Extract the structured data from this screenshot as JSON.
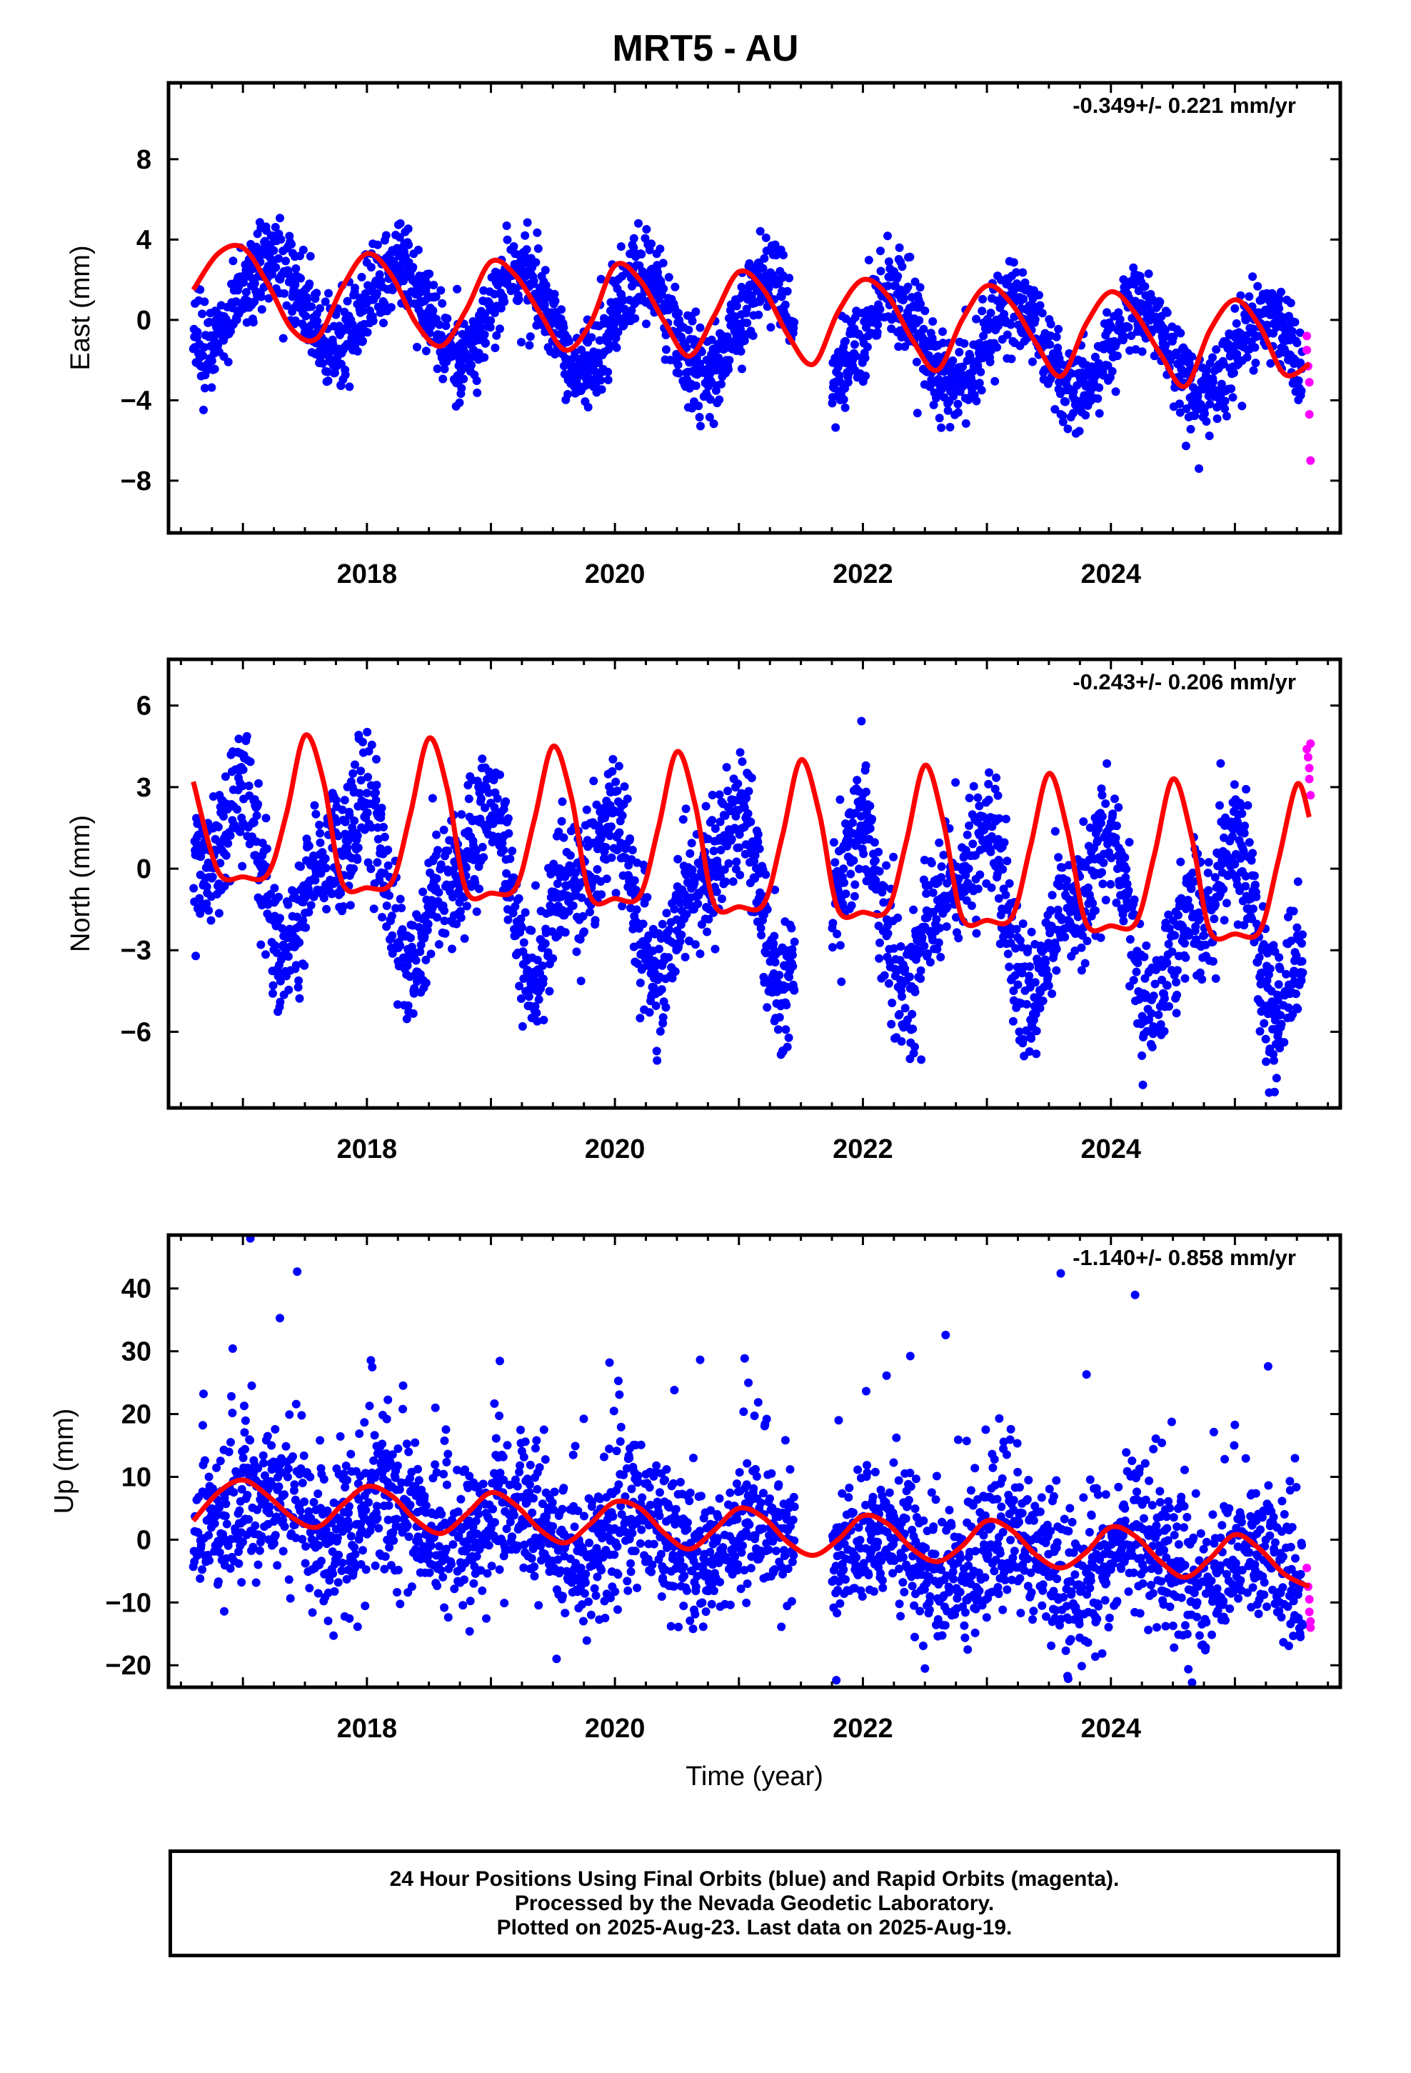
{
  "title": "MRT5 - AU",
  "colors": {
    "final": "#0000ff",
    "rapid": "#ff00ff",
    "fit": "#ff0000",
    "frame": "#000000"
  },
  "footer": {
    "line1": "24 Hour Positions Using Final Orbits (blue) and Rapid Orbits (magenta).",
    "line2": "Processed by the Nevada Geodetic Laboratory.",
    "line3": "Plotted on 2025-Aug-23. Last data on 2025-Aug-19."
  },
  "chart_data": [
    {
      "type": "scatter",
      "panel": "east",
      "ylabel": "East (mm)",
      "xlabel": "",
      "rate_label": "-0.349+/- 0.221 mm/yr",
      "xlim": [
        2016.4,
        2025.85
      ],
      "ylim": [
        -10.6,
        11.8
      ],
      "xticks": [
        2018,
        2020,
        2022,
        2024
      ],
      "yticks": [
        8,
        4,
        0,
        -4,
        -8
      ],
      "ytick_labels": [
        "8",
        "4",
        "0",
        "−4",
        "−8"
      ],
      "series": [
        {
          "kind": "final_points",
          "description_from_legend": "final orbits (blue)",
          "x_start": 2016.6,
          "x_end": 2025.55,
          "trend_at_start": 1.1,
          "rate": -0.349,
          "annual_amplitude": 2.3,
          "annual_phase": 0.1,
          "semiannual_amplitude": 0.0,
          "semiannual_phase": 0.0,
          "scatter_sd": 1.1
        },
        {
          "kind": "rapid_points",
          "description_from_legend": "rapid orbits (magenta)",
          "x": [
            2025.58,
            2025.58,
            2025.59,
            2025.6,
            2025.6,
            2025.61
          ],
          "y": [
            -0.8,
            -1.5,
            -2.3,
            -3.1,
            -4.7,
            -7.0
          ]
        },
        {
          "kind": "fit_line",
          "x": [
            2016.6,
            2016.8,
            2017.0,
            2017.2,
            2017.4,
            2017.6,
            2017.8,
            2018.0,
            2018.2,
            2018.4,
            2018.6,
            2018.8,
            2019.0,
            2019.2,
            2019.4,
            2019.6,
            2019.8,
            2020.0,
            2020.2,
            2020.4,
            2020.6,
            2020.8,
            2021.0,
            2021.2,
            2021.4,
            2021.6,
            2021.8,
            2022.0,
            2022.2,
            2022.4,
            2022.6,
            2022.8,
            2023.0,
            2023.2,
            2023.4,
            2023.6,
            2023.8,
            2024.0,
            2024.2,
            2024.4,
            2024.6,
            2024.8,
            2025.0,
            2025.2,
            2025.4,
            2025.6
          ],
          "y": [
            1.5,
            3.3,
            3.6,
            1.8,
            -0.5,
            -0.9,
            1.6,
            3.3,
            2.2,
            -0.2,
            -1.3,
            0.5,
            2.9,
            2.2,
            0.3,
            -1.5,
            -0.2,
            2.7,
            2.0,
            -0.1,
            -1.8,
            0.2,
            2.4,
            1.5,
            -0.8,
            -2.2,
            0.4,
            2.0,
            1.2,
            -1.0,
            -2.5,
            0.0,
            1.7,
            0.8,
            -1.2,
            -2.8,
            -0.2,
            1.4,
            0.3,
            -1.7,
            -3.3,
            -0.5,
            1.0,
            -0.3,
            -2.7,
            -2.2
          ]
        }
      ]
    },
    {
      "type": "scatter",
      "panel": "north",
      "ylabel": "North (mm)",
      "xlabel": "",
      "rate_label": "-0.243+/- 0.206 mm/yr",
      "xlim": [
        2016.4,
        2025.85
      ],
      "ylim": [
        -8.8,
        7.7
      ],
      "xticks": [
        2018,
        2020,
        2022,
        2024
      ],
      "yticks": [
        6,
        3,
        0,
        -3,
        -6
      ],
      "ytick_labels": [
        "6",
        "3",
        "0",
        "−3",
        "−6"
      ],
      "series": [
        {
          "kind": "final_points",
          "description_from_legend": "final orbits (blue)",
          "x_start": 2016.6,
          "x_end": 2025.55,
          "trend_at_start": 0.0,
          "rate": -0.243,
          "annual_amplitude": 2.5,
          "annual_phase": 2.2,
          "semiannual_amplitude": 1.2,
          "semiannual_phase": 1.0,
          "scatter_sd": 1.2
        },
        {
          "kind": "rapid_points",
          "description_from_legend": "rapid orbits (magenta)",
          "x": [
            2025.58,
            2025.59,
            2025.6,
            2025.6,
            2025.61,
            2025.61
          ],
          "y": [
            4.4,
            4.1,
            3.7,
            3.3,
            2.7,
            4.6
          ]
        },
        {
          "kind": "fit_line",
          "x": [
            2016.6,
            2016.8,
            2017.0,
            2017.2,
            2017.35,
            2017.5,
            2017.65,
            2017.8,
            2018.0,
            2018.2,
            2018.35,
            2018.5,
            2018.65,
            2018.8,
            2019.0,
            2019.2,
            2019.35,
            2019.5,
            2019.65,
            2019.8,
            2020.0,
            2020.2,
            2020.35,
            2020.5,
            2020.65,
            2020.8,
            2021.0,
            2021.2,
            2021.35,
            2021.5,
            2021.65,
            2021.8,
            2022.0,
            2022.2,
            2022.35,
            2022.5,
            2022.65,
            2022.8,
            2023.0,
            2023.2,
            2023.35,
            2023.5,
            2023.65,
            2023.8,
            2024.0,
            2024.2,
            2024.35,
            2024.5,
            2024.65,
            2024.8,
            2025.0,
            2025.2,
            2025.35,
            2025.5,
            2025.6
          ],
          "y": [
            3.2,
            -0.1,
            -0.3,
            -0.2,
            2.0,
            4.9,
            3.2,
            -0.5,
            -0.7,
            -0.5,
            2.0,
            4.8,
            2.9,
            -0.8,
            -0.9,
            -0.7,
            1.8,
            4.5,
            2.6,
            -1.0,
            -1.1,
            -1.0,
            1.5,
            4.3,
            2.3,
            -1.3,
            -1.4,
            -1.3,
            1.2,
            4.0,
            2.0,
            -1.5,
            -1.6,
            -1.5,
            1.0,
            3.8,
            1.7,
            -1.8,
            -1.9,
            -1.8,
            0.8,
            3.5,
            1.4,
            -2.0,
            -2.1,
            -2.0,
            0.5,
            3.3,
            1.2,
            -2.3,
            -2.4,
            -2.3,
            0.3,
            3.1,
            1.9
          ]
        }
      ]
    },
    {
      "type": "scatter",
      "panel": "up",
      "ylabel": "Up (mm)",
      "xlabel": "Time (year)",
      "rate_label": "-1.140+/- 0.858 mm/yr",
      "xlim": [
        2016.4,
        2025.85
      ],
      "ylim": [
        -23.5,
        48.5
      ],
      "xticks": [
        2018,
        2020,
        2022,
        2024
      ],
      "yticks": [
        40,
        30,
        20,
        10,
        0,
        -10,
        -20
      ],
      "ytick_labels": [
        "40",
        "30",
        "20",
        "10",
        "0",
        "−10",
        "−20"
      ],
      "series": [
        {
          "kind": "final_points",
          "description_from_legend": "final orbits (blue)",
          "x_start": 2016.6,
          "x_end": 2025.55,
          "trend_at_start": 4.5,
          "rate": -1.14,
          "annual_amplitude": 3.8,
          "annual_phase": 0.4,
          "semiannual_amplitude": 0.0,
          "semiannual_phase": 0.0,
          "scatter_sd": 5.5
        },
        {
          "kind": "rapid_points",
          "description_from_legend": "rapid orbits (magenta)",
          "x": [
            2025.58,
            2025.59,
            2025.6,
            2025.6,
            2025.61,
            2025.61
          ],
          "y": [
            -4.5,
            -7.5,
            -9.5,
            -11.5,
            -13.0,
            -14.0
          ]
        },
        {
          "kind": "fit_line",
          "x": [
            2016.6,
            2016.8,
            2017.0,
            2017.2,
            2017.4,
            2017.6,
            2017.8,
            2018.0,
            2018.2,
            2018.4,
            2018.6,
            2018.8,
            2019.0,
            2019.2,
            2019.4,
            2019.6,
            2019.8,
            2020.0,
            2020.2,
            2020.4,
            2020.6,
            2020.8,
            2021.0,
            2021.2,
            2021.4,
            2021.6,
            2021.8,
            2022.0,
            2022.2,
            2022.4,
            2022.6,
            2022.8,
            2023.0,
            2023.2,
            2023.4,
            2023.6,
            2023.8,
            2024.0,
            2024.2,
            2024.4,
            2024.6,
            2024.8,
            2025.0,
            2025.2,
            2025.4,
            2025.6
          ],
          "y": [
            3.0,
            7.5,
            9.5,
            7.0,
            3.5,
            2.0,
            5.5,
            8.5,
            7.0,
            3.0,
            1.0,
            4.0,
            7.5,
            5.5,
            1.5,
            -0.5,
            2.5,
            6.0,
            5.0,
            1.0,
            -1.5,
            1.5,
            5.0,
            3.5,
            -0.5,
            -2.5,
            0.0,
            3.8,
            2.5,
            -1.5,
            -3.5,
            -1.0,
            3.0,
            1.5,
            -2.5,
            -4.5,
            -2.0,
            2.0,
            0.5,
            -3.5,
            -6.0,
            -3.0,
            0.8,
            -1.5,
            -5.5,
            -7.5
          ]
        }
      ]
    }
  ]
}
